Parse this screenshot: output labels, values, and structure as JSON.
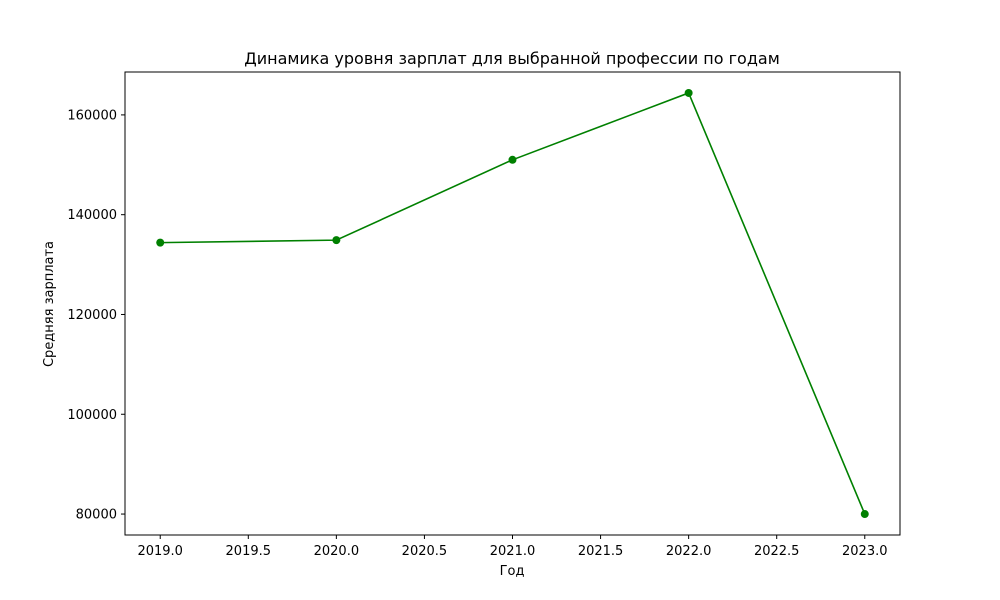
{
  "chart_data": {
    "type": "line",
    "title": "Динамика уровня зарплат для выбранной профессии по годам",
    "xlabel": "Год",
    "ylabel": "Средняя зарплата",
    "x": [
      2019,
      2020,
      2021,
      2022,
      2023
    ],
    "series": [
      {
        "values": [
          134400,
          134900,
          151000,
          164400,
          80000
        ]
      }
    ],
    "xlim": [
      2018.8,
      2023.2
    ],
    "ylim": [
      75800,
      168600
    ],
    "xticks": [
      "2019.0",
      "2019.5",
      "2020.0",
      "2020.5",
      "2021.0",
      "2021.5",
      "2022.0",
      "2022.5",
      "2023.0"
    ],
    "yticks": [
      "80000",
      "100000",
      "120000",
      "140000",
      "160000"
    ],
    "line_color": "#008000",
    "marker": "circle",
    "grid": false,
    "legend": false
  }
}
